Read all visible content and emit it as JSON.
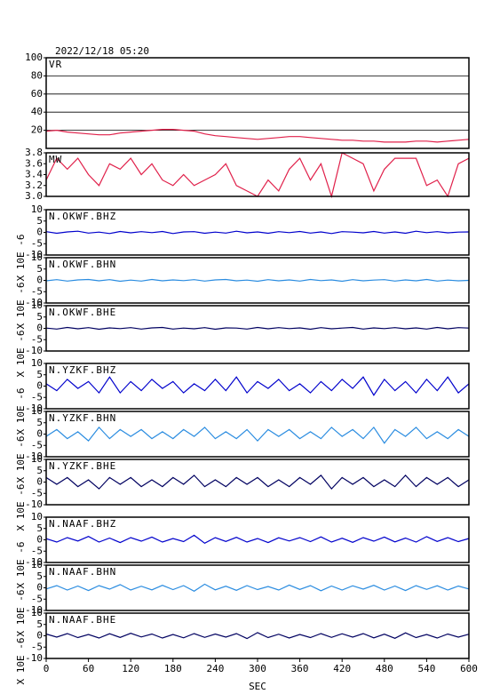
{
  "chart_data": [
    {
      "type": "line",
      "title": "2022/12/18 05:20",
      "label": "VR",
      "color": "#e0204a",
      "grid": true,
      "xlim": [
        0,
        600
      ],
      "ylim": [
        0,
        100
      ],
      "yticks": [
        20,
        40,
        60,
        80,
        100
      ],
      "x": [
        0,
        15,
        30,
        45,
        60,
        75,
        90,
        105,
        120,
        135,
        150,
        165,
        180,
        195,
        210,
        225,
        240,
        255,
        270,
        285,
        300,
        315,
        330,
        345,
        360,
        375,
        390,
        405,
        420,
        435,
        450,
        465,
        480,
        495,
        510,
        525,
        540,
        555,
        570,
        585,
        600
      ],
      "values": [
        19,
        20,
        18,
        17,
        16,
        15,
        15,
        17,
        18,
        19,
        20,
        21,
        21,
        20,
        19,
        16,
        14,
        13,
        12,
        11,
        10,
        11,
        12,
        13,
        13,
        12,
        11,
        10,
        9,
        9,
        8,
        8,
        7,
        7,
        7,
        8,
        8,
        7,
        8,
        9,
        10
      ]
    },
    {
      "type": "line",
      "label": "MW",
      "color": "#e0204a",
      "xlim": [
        0,
        600
      ],
      "ylim": [
        3.0,
        3.8
      ],
      "yticks": [
        {
          "value": 3.0,
          "label": "3.0"
        },
        3.2,
        3.4,
        3.6,
        3.8
      ],
      "x": [
        0,
        15,
        30,
        45,
        60,
        75,
        90,
        105,
        120,
        135,
        150,
        165,
        180,
        195,
        210,
        225,
        240,
        255,
        270,
        285,
        300,
        315,
        330,
        345,
        360,
        375,
        390,
        405,
        420,
        435,
        450,
        465,
        480,
        495,
        510,
        525,
        540,
        555,
        570,
        585,
        600
      ],
      "values": [
        3.3,
        3.7,
        3.5,
        3.7,
        3.4,
        3.2,
        3.6,
        3.5,
        3.7,
        3.4,
        3.6,
        3.3,
        3.2,
        3.4,
        3.2,
        3.3,
        3.4,
        3.6,
        3.2,
        3.1,
        3.0,
        3.3,
        3.1,
        3.5,
        3.7,
        3.3,
        3.6,
        3.0,
        3.8,
        3.7,
        3.6,
        3.1,
        3.5,
        3.7,
        3.7,
        3.7,
        3.2,
        3.3,
        3.0,
        3.6,
        3.7
      ]
    },
    {
      "type": "line",
      "label": "N.OKWF.BHZ",
      "ylabel": "X 10E -6",
      "color": "#0000cc",
      "xlim": [
        0,
        600
      ],
      "ylim": [
        -10,
        10
      ],
      "yticks": [
        -10,
        -5,
        0,
        5,
        10
      ],
      "x": [
        0,
        15,
        30,
        45,
        60,
        75,
        90,
        105,
        120,
        135,
        150,
        165,
        180,
        195,
        210,
        225,
        240,
        255,
        270,
        285,
        300,
        315,
        330,
        345,
        360,
        375,
        390,
        405,
        420,
        435,
        450,
        465,
        480,
        495,
        510,
        525,
        540,
        555,
        570,
        585,
        600
      ],
      "values": [
        0.3,
        -0.4,
        0.2,
        0.5,
        -0.3,
        0.1,
        -0.5,
        0.4,
        -0.2,
        0.3,
        -0.1,
        0.4,
        -0.5,
        0.2,
        0.3,
        -0.4,
        0.1,
        -0.3,
        0.5,
        -0.2,
        0.2,
        -0.4,
        0.3,
        -0.1,
        0.4,
        -0.3,
        0.2,
        -0.5,
        0.3,
        0.1,
        -0.2,
        0.4,
        -0.3,
        0.2,
        -0.4,
        0.5,
        -0.1,
        0.3,
        -0.2,
        0.1,
        0.2
      ]
    },
    {
      "type": "line",
      "label": "N.OKWF.BHN",
      "ylabel": "X 10E -6",
      "color": "#2a8ce0",
      "xlim": [
        0,
        600
      ],
      "ylim": [
        -10,
        10
      ],
      "yticks": [
        -10,
        -5,
        0,
        5,
        10
      ],
      "x": [
        0,
        15,
        30,
        45,
        60,
        75,
        90,
        105,
        120,
        135,
        150,
        165,
        180,
        195,
        210,
        225,
        240,
        255,
        270,
        285,
        300,
        315,
        330,
        345,
        360,
        375,
        390,
        405,
        420,
        435,
        450,
        465,
        480,
        495,
        510,
        525,
        540,
        555,
        570,
        585,
        600
      ],
      "values": [
        -0.2,
        0.3,
        -0.3,
        0.2,
        0.4,
        -0.2,
        0.3,
        -0.4,
        0.1,
        -0.3,
        0.4,
        -0.2,
        0.2,
        -0.1,
        0.3,
        -0.3,
        0.2,
        0.4,
        -0.2,
        0.1,
        -0.4,
        0.3,
        -0.2,
        0.2,
        -0.3,
        0.4,
        -0.1,
        0.2,
        -0.4,
        0.3,
        -0.2,
        0.1,
        0.3,
        -0.3,
        0.2,
        -0.2,
        0.4,
        -0.3,
        0.1,
        -0.2,
        0.0
      ]
    },
    {
      "type": "line",
      "label": "N.OKWF.BHE",
      "ylabel": "X 10E -6",
      "color": "#000060",
      "xlim": [
        0,
        600
      ],
      "ylim": [
        -10,
        10
      ],
      "yticks": [
        -10,
        -5,
        0,
        5,
        10
      ],
      "x": [
        0,
        15,
        30,
        45,
        60,
        75,
        90,
        105,
        120,
        135,
        150,
        165,
        180,
        195,
        210,
        225,
        240,
        255,
        270,
        285,
        300,
        315,
        330,
        345,
        360,
        375,
        390,
        405,
        420,
        435,
        450,
        465,
        480,
        495,
        510,
        525,
        540,
        555,
        570,
        585,
        600
      ],
      "values": [
        0.1,
        -0.3,
        0.4,
        -0.2,
        0.3,
        -0.4,
        0.2,
        -0.1,
        0.3,
        -0.3,
        0.2,
        0.4,
        -0.3,
        0.1,
        -0.2,
        0.3,
        -0.4,
        0.2,
        0.1,
        -0.3,
        0.4,
        -0.2,
        0.3,
        -0.1,
        0.2,
        -0.4,
        0.3,
        -0.2,
        0.1,
        0.4,
        -0.3,
        0.2,
        -0.1,
        0.3,
        -0.2,
        0.2,
        -0.3,
        0.4,
        -0.2,
        0.3,
        0.1
      ]
    },
    {
      "type": "line",
      "label": "N.YZKF.BHZ",
      "ylabel": "X 10E -6",
      "color": "#0000cc",
      "xlim": [
        0,
        600
      ],
      "ylim": [
        -10,
        10
      ],
      "yticks": [
        -10,
        -5,
        0,
        5,
        10
      ],
      "x": [
        0,
        15,
        30,
        45,
        60,
        75,
        90,
        105,
        120,
        135,
        150,
        165,
        180,
        195,
        210,
        225,
        240,
        255,
        270,
        285,
        300,
        315,
        330,
        345,
        360,
        375,
        390,
        405,
        420,
        435,
        450,
        465,
        480,
        495,
        510,
        525,
        540,
        555,
        570,
        585,
        600
      ],
      "values": [
        1,
        -2,
        3,
        -1,
        2,
        -3,
        4,
        -3,
        2,
        -2,
        3,
        -1,
        2,
        -3,
        1,
        -2,
        3,
        -2,
        4,
        -3,
        2,
        -1,
        3,
        -2,
        1,
        -3,
        2,
        -2,
        3,
        -1,
        4,
        -4,
        3,
        -2,
        2,
        -3,
        3,
        -2,
        4,
        -3,
        1
      ]
    },
    {
      "type": "line",
      "label": "N.YZKF.BHN",
      "ylabel": "X 10E -6",
      "color": "#2a8ce0",
      "xlim": [
        0,
        600
      ],
      "ylim": [
        -10,
        10
      ],
      "yticks": [
        -10,
        -5,
        0,
        5,
        10
      ],
      "x": [
        0,
        15,
        30,
        45,
        60,
        75,
        90,
        105,
        120,
        135,
        150,
        165,
        180,
        195,
        210,
        225,
        240,
        255,
        270,
        285,
        300,
        315,
        330,
        345,
        360,
        375,
        390,
        405,
        420,
        435,
        450,
        465,
        480,
        495,
        510,
        525,
        540,
        555,
        570,
        585,
        600
      ],
      "values": [
        -1,
        2,
        -2,
        1,
        -3,
        3,
        -2,
        2,
        -1,
        2,
        -2,
        1,
        -2,
        2,
        -1,
        3,
        -2,
        1,
        -2,
        2,
        -3,
        2,
        -1,
        2,
        -2,
        1,
        -2,
        3,
        -1,
        2,
        -2,
        3,
        -4,
        2,
        -1,
        3,
        -2,
        1,
        -2,
        2,
        -1
      ]
    },
    {
      "type": "line",
      "label": "N.YZKF.BHE",
      "ylabel": "X 10E -6",
      "color": "#000060",
      "xlim": [
        0,
        600
      ],
      "ylim": [
        -10,
        10
      ],
      "yticks": [
        -10,
        -5,
        0,
        5,
        10
      ],
      "x": [
        0,
        15,
        30,
        45,
        60,
        75,
        90,
        105,
        120,
        135,
        150,
        165,
        180,
        195,
        210,
        225,
        240,
        255,
        270,
        285,
        300,
        315,
        330,
        345,
        360,
        375,
        390,
        405,
        420,
        435,
        450,
        465,
        480,
        495,
        510,
        525,
        540,
        555,
        570,
        585,
        600
      ],
      "values": [
        2,
        -1,
        2,
        -2,
        1,
        -3,
        2,
        -1,
        2,
        -2,
        1,
        -2,
        2,
        -1,
        3,
        -2,
        1,
        -2,
        2,
        -1,
        2,
        -2,
        1,
        -2,
        2,
        -1,
        3,
        -3,
        2,
        -1,
        2,
        -2,
        1,
        -2,
        3,
        -2,
        2,
        -1,
        2,
        -2,
        1
      ]
    },
    {
      "type": "line",
      "label": "N.NAAF.BHZ",
      "ylabel": "X 10E -6",
      "color": "#0000cc",
      "xlim": [
        0,
        600
      ],
      "ylim": [
        -10,
        10
      ],
      "yticks": [
        -10,
        -5,
        0,
        5,
        10
      ],
      "x": [
        0,
        15,
        30,
        45,
        60,
        75,
        90,
        105,
        120,
        135,
        150,
        165,
        180,
        195,
        210,
        225,
        240,
        255,
        270,
        285,
        300,
        315,
        330,
        345,
        360,
        375,
        390,
        405,
        420,
        435,
        450,
        465,
        480,
        495,
        510,
        525,
        540,
        555,
        570,
        585,
        600
      ],
      "values": [
        0.5,
        -1,
        1,
        -0.5,
        1.5,
        -1,
        0.8,
        -1.2,
        1,
        -0.6,
        1.2,
        -1,
        0.6,
        -0.8,
        2,
        -1.5,
        1,
        -0.7,
        1.1,
        -1,
        0.6,
        -1.2,
        0.9,
        -0.5,
        1,
        -0.8,
        1.3,
        -1,
        0.7,
        -1.1,
        1,
        -0.6,
        1.2,
        -0.9,
        0.8,
        -1,
        1.4,
        -0.7,
        1,
        -0.8,
        0.6
      ]
    },
    {
      "type": "line",
      "label": "N.NAAF.BHN",
      "ylabel": "X 10E -6",
      "color": "#2a8ce0",
      "xlim": [
        0,
        600
      ],
      "ylim": [
        -10,
        10
      ],
      "yticks": [
        -10,
        -5,
        0,
        5,
        10
      ],
      "x": [
        0,
        15,
        30,
        45,
        60,
        75,
        90,
        105,
        120,
        135,
        150,
        165,
        180,
        195,
        210,
        225,
        240,
        255,
        270,
        285,
        300,
        315,
        330,
        345,
        360,
        375,
        390,
        405,
        420,
        435,
        450,
        465,
        480,
        495,
        510,
        525,
        540,
        555,
        570,
        585,
        600
      ],
      "values": [
        -0.5,
        1,
        -1,
        0.8,
        -1.2,
        1,
        -0.6,
        1.4,
        -1,
        0.7,
        -0.9,
        1.1,
        -0.8,
        1,
        -1.5,
        1.6,
        -0.9,
        0.7,
        -1.1,
        1,
        -0.8,
        0.6,
        -1,
        1.2,
        -0.7,
        1,
        -1.3,
        0.8,
        -1,
        0.9,
        -0.6,
        1.1,
        -1,
        0.8,
        -1.2,
        1,
        -0.7,
        0.9,
        -1,
        0.8,
        -0.5
      ]
    },
    {
      "type": "line",
      "label": "N.NAAF.BHE",
      "ylabel": "X 10E -6",
      "color": "#000060",
      "xlabel": "SEC",
      "xlim": [
        0,
        600
      ],
      "ylim": [
        -10,
        10
      ],
      "yticks": [
        -10,
        -5,
        0,
        5,
        10
      ],
      "xticks": [
        0,
        60,
        120,
        180,
        240,
        300,
        360,
        420,
        480,
        540,
        600
      ],
      "x": [
        0,
        15,
        30,
        45,
        60,
        75,
        90,
        105,
        120,
        135,
        150,
        165,
        180,
        195,
        210,
        225,
        240,
        255,
        270,
        285,
        300,
        315,
        330,
        345,
        360,
        375,
        390,
        405,
        420,
        435,
        450,
        465,
        480,
        495,
        510,
        525,
        540,
        555,
        570,
        585,
        600
      ],
      "values": [
        0.8,
        -0.6,
        1,
        -0.8,
        0.6,
        -1,
        0.9,
        -0.7,
        1.1,
        -0.5,
        0.8,
        -1,
        0.6,
        -0.9,
        1,
        -0.7,
        0.8,
        -0.6,
        1,
        -1.2,
        1.4,
        -0.8,
        0.7,
        -1,
        0.6,
        -0.8,
        1,
        -0.7,
        0.9,
        -0.6,
        1,
        -0.9,
        0.7,
        -1.1,
        1.3,
        -0.8,
        0.6,
        -1,
        0.8,
        -0.6,
        0.7
      ]
    }
  ]
}
